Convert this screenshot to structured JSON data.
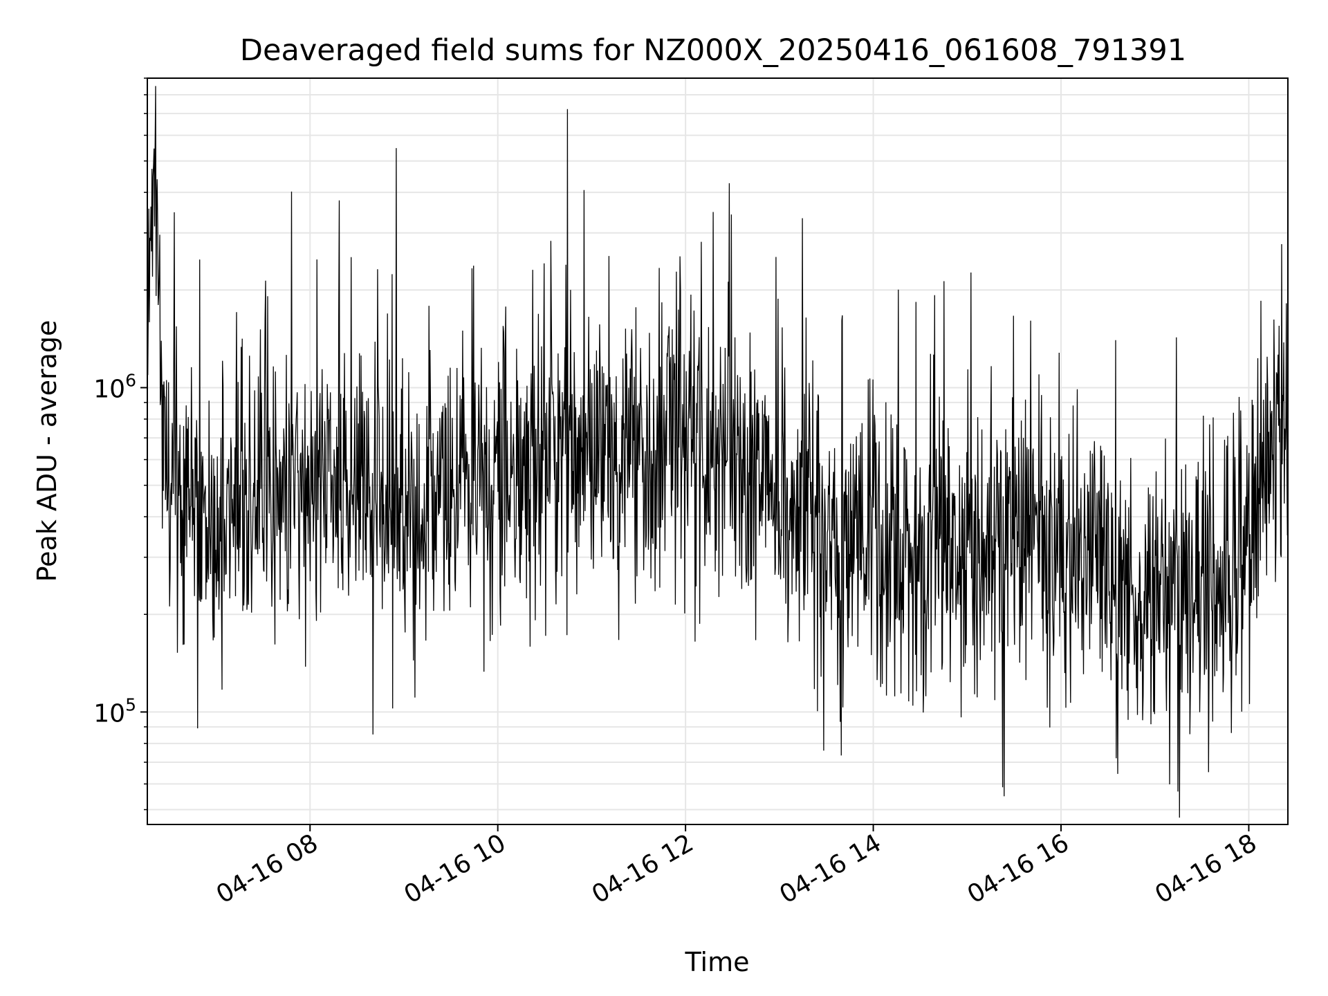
{
  "colors": {
    "line": "#000000",
    "grid": "#e6e6e6",
    "frame": "#000000",
    "background": "#ffffff"
  },
  "chart_data": {
    "type": "line",
    "title": "Deaveraged field sums for NZ000X_20250416_061608_791391",
    "xlabel": "Time",
    "ylabel": "Peak ADU - average",
    "yscale": "log",
    "xlim": [
      "2025-04-16 06:16",
      "2025-04-16 18:25"
    ],
    "ylim": [
      45000,
      9000000
    ],
    "x_ticks": [
      {
        "value": "2025-04-16 08:00",
        "label": "04-16 08"
      },
      {
        "value": "2025-04-16 10:00",
        "label": "04-16 10"
      },
      {
        "value": "2025-04-16 12:00",
        "label": "04-16 12"
      },
      {
        "value": "2025-04-16 14:00",
        "label": "04-16 14"
      },
      {
        "value": "2025-04-16 16:00",
        "label": "04-16 16"
      },
      {
        "value": "2025-04-16 18:00",
        "label": "04-16 18"
      }
    ],
    "y_ticks": [
      {
        "value": 100000,
        "base": "10",
        "exp": "5"
      },
      {
        "value": 1000000,
        "base": "10",
        "exp": "6"
      }
    ],
    "grid": true,
    "legend": "none",
    "series": [
      {
        "values_description_note": null,
        "points": [
          [
            "2025-04-16 06:16",
            1400000
          ],
          [
            "2025-04-16 06:20",
            6500000
          ],
          [
            "2025-04-16 06:24",
            1200000
          ],
          [
            "2025-04-16 06:30",
            500000
          ],
          [
            "2025-04-16 06:40",
            450000
          ],
          [
            "2025-04-16 06:50",
            350000
          ],
          [
            "2025-04-16 07:00",
            330000
          ],
          [
            "2025-04-16 07:15",
            420000
          ],
          [
            "2025-04-16 07:30",
            500000
          ],
          [
            "2025-04-16 07:45",
            460000
          ],
          [
            "2025-04-16 08:00",
            480000
          ],
          [
            "2025-04-16 08:30",
            470000
          ],
          [
            "2025-04-16 09:00",
            400000
          ],
          [
            "2025-04-16 09:30",
            450000
          ],
          [
            "2025-04-16 10:00",
            480000
          ],
          [
            "2025-04-16 10:30",
            600000
          ],
          [
            "2025-04-16 11:00",
            620000
          ],
          [
            "2025-04-16 11:30",
            650000
          ],
          [
            "2025-04-16 12:00",
            750000
          ],
          [
            "2025-04-16 12:30",
            650000
          ],
          [
            "2025-04-16 13:00",
            450000
          ],
          [
            "2025-04-16 13:30",
            350000
          ],
          [
            "2025-04-16 14:00",
            310000
          ],
          [
            "2025-04-16 14:30",
            280000
          ],
          [
            "2025-04-16 14:48",
            350000
          ],
          [
            "2025-04-16 15:00",
            330000
          ],
          [
            "2025-04-16 15:30",
            320000
          ],
          [
            "2025-04-16 16:00",
            300000
          ],
          [
            "2025-04-16 16:30",
            230000
          ],
          [
            "2025-04-16 17:00",
            200000
          ],
          [
            "2025-04-16 17:30",
            240000
          ],
          [
            "2025-04-16 17:50",
            260000
          ],
          [
            "2025-04-16 18:00",
            400000
          ],
          [
            "2025-04-16 18:10",
            600000
          ],
          [
            "2025-04-16 18:25",
            800000
          ]
        ]
      }
    ]
  }
}
